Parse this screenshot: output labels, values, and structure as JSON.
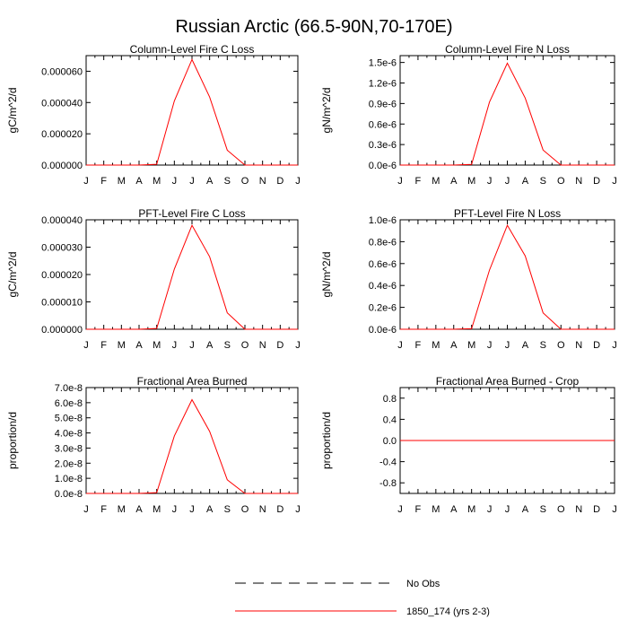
{
  "figure": {
    "title": "Russian Arctic (66.5-90N,70-170E)"
  },
  "legend": {
    "entries": [
      {
        "label": "No Obs",
        "style": "dashed",
        "color": "#000000"
      },
      {
        "label": "1850_174 (yrs 2-3)",
        "style": "solid",
        "color": "#ff0000"
      }
    ]
  },
  "colors": {
    "series": "#ff0000",
    "axis": "#000000"
  },
  "chart_data": [
    {
      "type": "line",
      "title": "Column-Level Fire C Loss",
      "ylabel": "gC/m^2/d",
      "categories": [
        "J",
        "F",
        "M",
        "A",
        "M",
        "J",
        "J",
        "A",
        "S",
        "O",
        "N",
        "D",
        "J"
      ],
      "ylim": [
        0,
        7e-05
      ],
      "yticks": [
        0,
        2e-05,
        4e-05,
        6e-05
      ],
      "yticklabels": [
        "0.000000",
        "0.000020",
        "0.000040",
        "0.000060"
      ],
      "series": [
        {
          "name": "1850_174 (yrs 2-3)",
          "values": [
            0,
            0,
            0,
            0,
            5e-07,
            4.1e-05,
            6.75e-05,
            4.35e-05,
            9.5e-06,
            0,
            0,
            0,
            0
          ]
        }
      ]
    },
    {
      "type": "line",
      "title": "Column-Level Fire N Loss",
      "ylabel": "gN/m^2/d",
      "categories": [
        "J",
        "F",
        "M",
        "A",
        "M",
        "J",
        "J",
        "A",
        "S",
        "O",
        "N",
        "D",
        "J"
      ],
      "ylim": [
        0,
        1.6e-06
      ],
      "yticks": [
        0,
        3e-07,
        6e-07,
        9e-07,
        1.2e-06,
        1.5e-06
      ],
      "yticklabels": [
        "0.0e-6",
        "0.3e-6",
        "0.6e-6",
        "0.9e-6",
        "1.2e-6",
        "1.5e-6"
      ],
      "series": [
        {
          "name": "1850_174 (yrs 2-3)",
          "values": [
            0,
            0,
            0,
            0,
            1e-08,
            9.2e-07,
            1.49e-06,
            9.8e-07,
            2.2e-07,
            0,
            0,
            0,
            0
          ]
        }
      ]
    },
    {
      "type": "line",
      "title": "PFT-Level Fire C Loss",
      "ylabel": "gC/m^2/d",
      "categories": [
        "J",
        "F",
        "M",
        "A",
        "M",
        "J",
        "J",
        "A",
        "S",
        "O",
        "N",
        "D",
        "J"
      ],
      "ylim": [
        0,
        4e-05
      ],
      "yticks": [
        0,
        1e-05,
        2e-05,
        3e-05,
        4e-05
      ],
      "yticklabels": [
        "0.000000",
        "0.000010",
        "0.000020",
        "0.000030",
        "0.000040"
      ],
      "series": [
        {
          "name": "1850_174 (yrs 2-3)",
          "values": [
            0,
            0,
            0,
            0,
            3e-07,
            2.2e-05,
            3.8e-05,
            2.65e-05,
            6e-06,
            0,
            0,
            0,
            0
          ]
        }
      ]
    },
    {
      "type": "line",
      "title": "PFT-Level Fire N Loss",
      "ylabel": "gN/m^2/d",
      "categories": [
        "J",
        "F",
        "M",
        "A",
        "M",
        "J",
        "J",
        "A",
        "S",
        "O",
        "N",
        "D",
        "J"
      ],
      "ylim": [
        0,
        1e-06
      ],
      "yticks": [
        0,
        2e-07,
        4e-07,
        6e-07,
        8e-07,
        1e-06
      ],
      "yticklabels": [
        "0.0e-6",
        "0.2e-6",
        "0.4e-6",
        "0.6e-6",
        "0.8e-6",
        "1.0e-6"
      ],
      "series": [
        {
          "name": "1850_174 (yrs 2-3)",
          "values": [
            0,
            0,
            0,
            0,
            5e-09,
            5.4e-07,
            9.5e-07,
            6.7e-07,
            1.5e-07,
            0,
            0,
            0,
            0
          ]
        }
      ]
    },
    {
      "type": "line",
      "title": "Fractional Area Burned",
      "ylabel": "proportion/d",
      "categories": [
        "J",
        "F",
        "M",
        "A",
        "M",
        "J",
        "J",
        "A",
        "S",
        "O",
        "N",
        "D",
        "J"
      ],
      "ylim": [
        0,
        7e-08
      ],
      "yticks": [
        0,
        1e-08,
        2e-08,
        3e-08,
        4e-08,
        5e-08,
        6e-08,
        7e-08
      ],
      "yticklabels": [
        "0.0e-8",
        "1.0e-8",
        "2.0e-8",
        "3.0e-8",
        "4.0e-8",
        "5.0e-8",
        "6.0e-8",
        "7.0e-8"
      ],
      "series": [
        {
          "name": "1850_174 (yrs 2-3)",
          "values": [
            0,
            0,
            0,
            0,
            5e-10,
            3.8e-08,
            6.2e-08,
            4.1e-08,
            9e-09,
            0,
            0,
            0,
            0
          ]
        }
      ]
    },
    {
      "type": "line",
      "title": "Fractional Area Burned - Crop",
      "ylabel": "proportion/d",
      "categories": [
        "J",
        "F",
        "M",
        "A",
        "M",
        "J",
        "J",
        "A",
        "S",
        "O",
        "N",
        "D",
        "J"
      ],
      "ylim": [
        -1,
        1
      ],
      "yticks": [
        -0.8,
        -0.4,
        0,
        0.4,
        0.8
      ],
      "yticklabels": [
        "-0.8",
        "-0.4",
        "0.0",
        "0.4",
        "0.8"
      ],
      "series": [
        {
          "name": "1850_174 (yrs 2-3)",
          "values": [
            0,
            0,
            0,
            0,
            0,
            0,
            0,
            0,
            0,
            0,
            0,
            0,
            0
          ]
        }
      ]
    }
  ]
}
